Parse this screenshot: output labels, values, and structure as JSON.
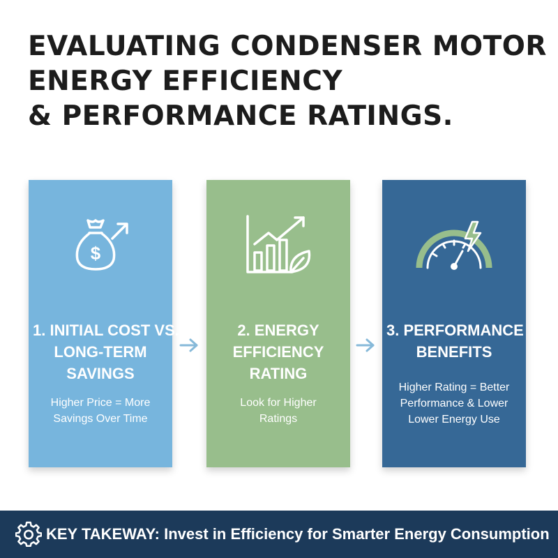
{
  "title": {
    "line1": "EVALUATING CONDENSER MOTOR",
    "line2": "ENERGY EFFICIENCY",
    "line3": "& PERFORMANCE RATINGS."
  },
  "cards": [
    {
      "title_lines": [
        "1. INITIAL COST VS.",
        "LONG-TERM",
        "SAVINGS"
      ],
      "body_lines": [
        "Higher Price = More",
        "Savings Over Time"
      ],
      "icon": "money-bag-arrow-icon",
      "color": "#77b5dd"
    },
    {
      "title_lines": [
        "2. ENERGY",
        "EFFICIENCY",
        "RATING"
      ],
      "body_lines": [
        "Look for Higher",
        "Ratings"
      ],
      "icon": "growth-chart-leaf-icon",
      "color": "#98be8c"
    },
    {
      "title_lines": [
        "3. PERFORMANCE",
        "BENEFITS"
      ],
      "body_lines": [
        "Higher Rating = Better",
        "Performance & Lower",
        "Lower Energy Use"
      ],
      "icon": "speedometer-bolt-icon",
      "color": "#366896"
    }
  ],
  "arrow_icon": "arrow-right-icon",
  "banner": {
    "label": "KEY TAKEWAY:",
    "text": " Invest in Efficiency for Smarter Energy Consumption",
    "icon": "gear-icon",
    "color": "#1c3a5a"
  }
}
